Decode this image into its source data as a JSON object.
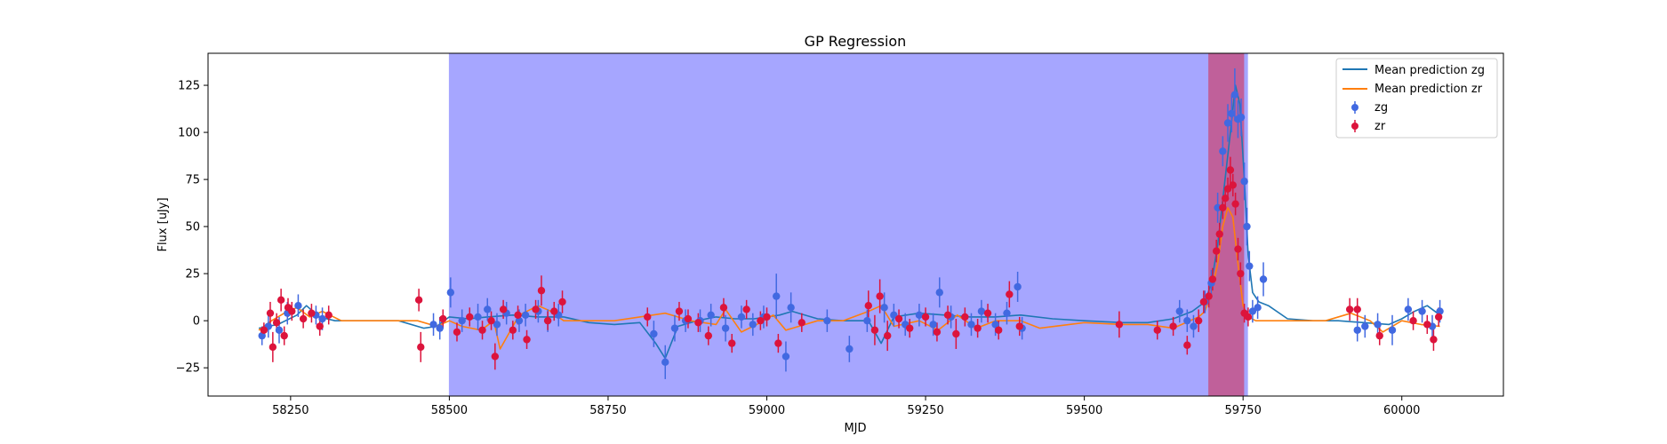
{
  "chart_data": {
    "type": "scatter",
    "title": "GP Regression",
    "xlabel": "MJD",
    "ylabel": "Flux [uJy]",
    "xlim": [
      58120,
      60160
    ],
    "ylim": [
      -40,
      142
    ],
    "xticks": [
      58250,
      58500,
      58750,
      59000,
      59250,
      59500,
      59750,
      60000
    ],
    "yticks": [
      -25,
      0,
      25,
      50,
      75,
      100,
      125
    ],
    "grid": false,
    "legend_position": "top-right",
    "shaded_regions": [
      {
        "x0": 58500,
        "x1": 59757,
        "color": "#a6a6ff"
      },
      {
        "x0": 59696,
        "x1": 59751,
        "color": "#c0609a"
      }
    ],
    "colors": {
      "zg_line": "#1f77b4",
      "zr_line": "#ff7f0e",
      "zg_points": "#4169e1",
      "zr_points": "#dc143c"
    },
    "series": [
      {
        "name": "Mean prediction zg",
        "kind": "line",
        "x": [
          58200,
          58230,
          58260,
          58275,
          58295,
          58320,
          58360,
          58420,
          58460,
          58480,
          58500,
          58530,
          58560,
          58600,
          58640,
          58680,
          58720,
          58760,
          58800,
          58825,
          58840,
          58860,
          58890,
          58920,
          58950,
          58980,
          59020,
          59040,
          59080,
          59120,
          59160,
          59180,
          59200,
          59240,
          59280,
          59320,
          59360,
          59400,
          59450,
          59500,
          59560,
          59600,
          59640,
          59670,
          59690,
          59700,
          59710,
          59720,
          59730,
          59738,
          59745,
          59752,
          59758,
          59765,
          59775,
          59790,
          59820,
          59860,
          59900,
          59940,
          59980,
          60000,
          60020,
          60040,
          60060
        ],
        "y": [
          -4,
          -2,
          3,
          8,
          2,
          0,
          0,
          0,
          -4,
          -3,
          2,
          1,
          2,
          3,
          2,
          2,
          -1,
          -2,
          -1,
          -12,
          -20,
          -3,
          0,
          2,
          1,
          1,
          3,
          5,
          1,
          0,
          0,
          -12,
          2,
          4,
          3,
          2,
          2,
          3,
          1,
          0,
          -1,
          -1,
          1,
          5,
          10,
          20,
          40,
          70,
          100,
          125,
          115,
          75,
          35,
          15,
          10,
          8,
          1,
          0,
          0,
          -1,
          -2,
          1,
          5,
          8,
          3
        ]
      },
      {
        "name": "Mean prediction zr",
        "kind": "line",
        "x": [
          58200,
          58220,
          58240,
          58260,
          58280,
          58300,
          58330,
          58380,
          58450,
          58480,
          58500,
          58520,
          58550,
          58570,
          58580,
          58610,
          58640,
          58660,
          58680,
          58720,
          58760,
          58800,
          58840,
          58880,
          58920,
          58935,
          58960,
          58990,
          59010,
          59030,
          59080,
          59120,
          59160,
          59180,
          59200,
          59240,
          59270,
          59300,
          59330,
          59360,
          59400,
          59430,
          59500,
          59560,
          59600,
          59640,
          59680,
          59690,
          59700,
          59710,
          59718,
          59726,
          59734,
          59742,
          59750,
          59758,
          59770,
          59800,
          59880,
          59920,
          59950,
          59970,
          60000,
          60030,
          60060
        ],
        "y": [
          -5,
          0,
          4,
          7,
          2,
          5,
          0,
          0,
          0,
          -3,
          0,
          -3,
          -5,
          0,
          -15,
          3,
          8,
          5,
          0,
          0,
          0,
          2,
          4,
          0,
          -2,
          6,
          -6,
          -1,
          3,
          -5,
          0,
          0,
          5,
          8,
          -3,
          0,
          -5,
          3,
          -4,
          0,
          0,
          -4,
          -1,
          -2,
          -2,
          -4,
          2,
          5,
          15,
          30,
          50,
          60,
          55,
          30,
          8,
          2,
          0,
          0,
          0,
          4,
          0,
          -6,
          0,
          -2,
          -3
        ]
      },
      {
        "name": "zg",
        "kind": "errorbar",
        "x": [
          58205,
          58215,
          58232,
          58245,
          58262,
          58290,
          58300,
          58475,
          58485,
          58502,
          58520,
          58545,
          58560,
          58575,
          58590,
          58610,
          58620,
          58640,
          58655,
          58672,
          58822,
          58840,
          58855,
          58872,
          58895,
          58912,
          58935,
          58960,
          58978,
          58995,
          59015,
          59030,
          59038,
          59095,
          59130,
          59158,
          59185,
          59200,
          59218,
          59240,
          59262,
          59272,
          59290,
          59322,
          59338,
          59360,
          59378,
          59395,
          59402,
          59650,
          59662,
          59672,
          59690,
          59700,
          59710,
          59718,
          59726,
          59732,
          59737,
          59742,
          59747,
          59752,
          59756,
          59760,
          59765,
          59773,
          59782,
          59930,
          59942,
          59962,
          59985,
          60010,
          60032,
          60048,
          60060
        ],
        "y": [
          -8,
          -3,
          -5,
          4,
          8,
          3,
          1,
          -2,
          -4,
          15,
          0,
          2,
          6,
          -2,
          4,
          0,
          3,
          5,
          0,
          3,
          -7,
          -22,
          -4,
          0,
          0,
          3,
          -4,
          2,
          -2,
          2,
          13,
          -19,
          7,
          0,
          -15,
          0,
          7,
          3,
          -2,
          3,
          -2,
          15,
          2,
          -2,
          5,
          -2,
          4,
          18,
          -4,
          5,
          0,
          -3,
          10,
          20,
          60,
          90,
          105,
          110,
          120,
          107,
          108,
          74,
          50,
          29,
          5,
          7,
          22,
          -5,
          -3,
          -2,
          -5,
          6,
          5,
          -3,
          5
        ],
        "err": [
          5,
          6,
          7,
          6,
          6,
          5,
          6,
          6,
          6,
          8,
          6,
          7,
          6,
          6,
          6,
          6,
          6,
          6,
          6,
          6,
          7,
          9,
          7,
          6,
          6,
          6,
          7,
          6,
          6,
          6,
          12,
          8,
          8,
          6,
          7,
          6,
          8,
          6,
          6,
          6,
          6,
          8,
          6,
          6,
          6,
          6,
          6,
          8,
          6,
          6,
          6,
          6,
          6,
          7,
          8,
          8,
          10,
          10,
          14,
          10,
          10,
          10,
          10,
          8,
          6,
          6,
          9,
          6,
          6,
          6,
          8,
          6,
          6,
          6,
          6
        ]
      },
      {
        "name": "zr",
        "kind": "errorbar",
        "x": [
          58208,
          58218,
          58222,
          58228,
          58235,
          58240,
          58246,
          58252,
          58270,
          58283,
          58296,
          58310,
          58452,
          58455,
          58490,
          58512,
          58532,
          58552,
          58566,
          58572,
          58585,
          58600,
          58608,
          58622,
          58636,
          58645,
          58655,
          58665,
          58678,
          58812,
          58862,
          58876,
          58892,
          58908,
          58932,
          58945,
          58968,
          58990,
          59000,
          59018,
          59055,
          59160,
          59170,
          59178,
          59190,
          59208,
          59225,
          59250,
          59268,
          59285,
          59298,
          59312,
          59332,
          59348,
          59365,
          59382,
          59398,
          59555,
          59615,
          59640,
          59662,
          59680,
          59688,
          59696,
          59702,
          59708,
          59713,
          59718,
          59722,
          59726,
          59730,
          59734,
          59738,
          59742,
          59746,
          59752,
          59758,
          59918,
          59930,
          59965,
          60018,
          60040,
          60050,
          60058
        ],
        "y": [
          -5,
          4,
          -14,
          -1,
          11,
          -8,
          7,
          5,
          1,
          4,
          -3,
          3,
          11,
          -14,
          1,
          -6,
          2,
          -5,
          0,
          -19,
          6,
          -5,
          3,
          -10,
          6,
          16,
          0,
          5,
          10,
          2,
          5,
          1,
          -1,
          -8,
          7,
          -12,
          6,
          0,
          2,
          -12,
          -1,
          8,
          -5,
          13,
          -8,
          1,
          -4,
          2,
          -6,
          3,
          -7,
          2,
          -4,
          4,
          -5,
          14,
          -3,
          -2,
          -5,
          -3,
          -13,
          0,
          10,
          13,
          22,
          37,
          46,
          60,
          65,
          70,
          80,
          72,
          62,
          38,
          25,
          4,
          2,
          6,
          6,
          -8,
          0,
          -2,
          -10,
          2
        ],
        "err": [
          4,
          6,
          8,
          5,
          6,
          5,
          5,
          5,
          5,
          5,
          5,
          5,
          6,
          8,
          5,
          5,
          5,
          5,
          5,
          7,
          5,
          5,
          5,
          5,
          5,
          8,
          5,
          5,
          6,
          5,
          5,
          5,
          5,
          5,
          5,
          5,
          5,
          5,
          5,
          5,
          5,
          8,
          8,
          9,
          8,
          5,
          5,
          5,
          5,
          5,
          8,
          5,
          5,
          5,
          5,
          7,
          5,
          7,
          5,
          5,
          5,
          6,
          6,
          6,
          6,
          6,
          6,
          6,
          6,
          6,
          7,
          6,
          6,
          6,
          6,
          5,
          5,
          6,
          6,
          5,
          5,
          5,
          6,
          5
        ]
      }
    ]
  }
}
